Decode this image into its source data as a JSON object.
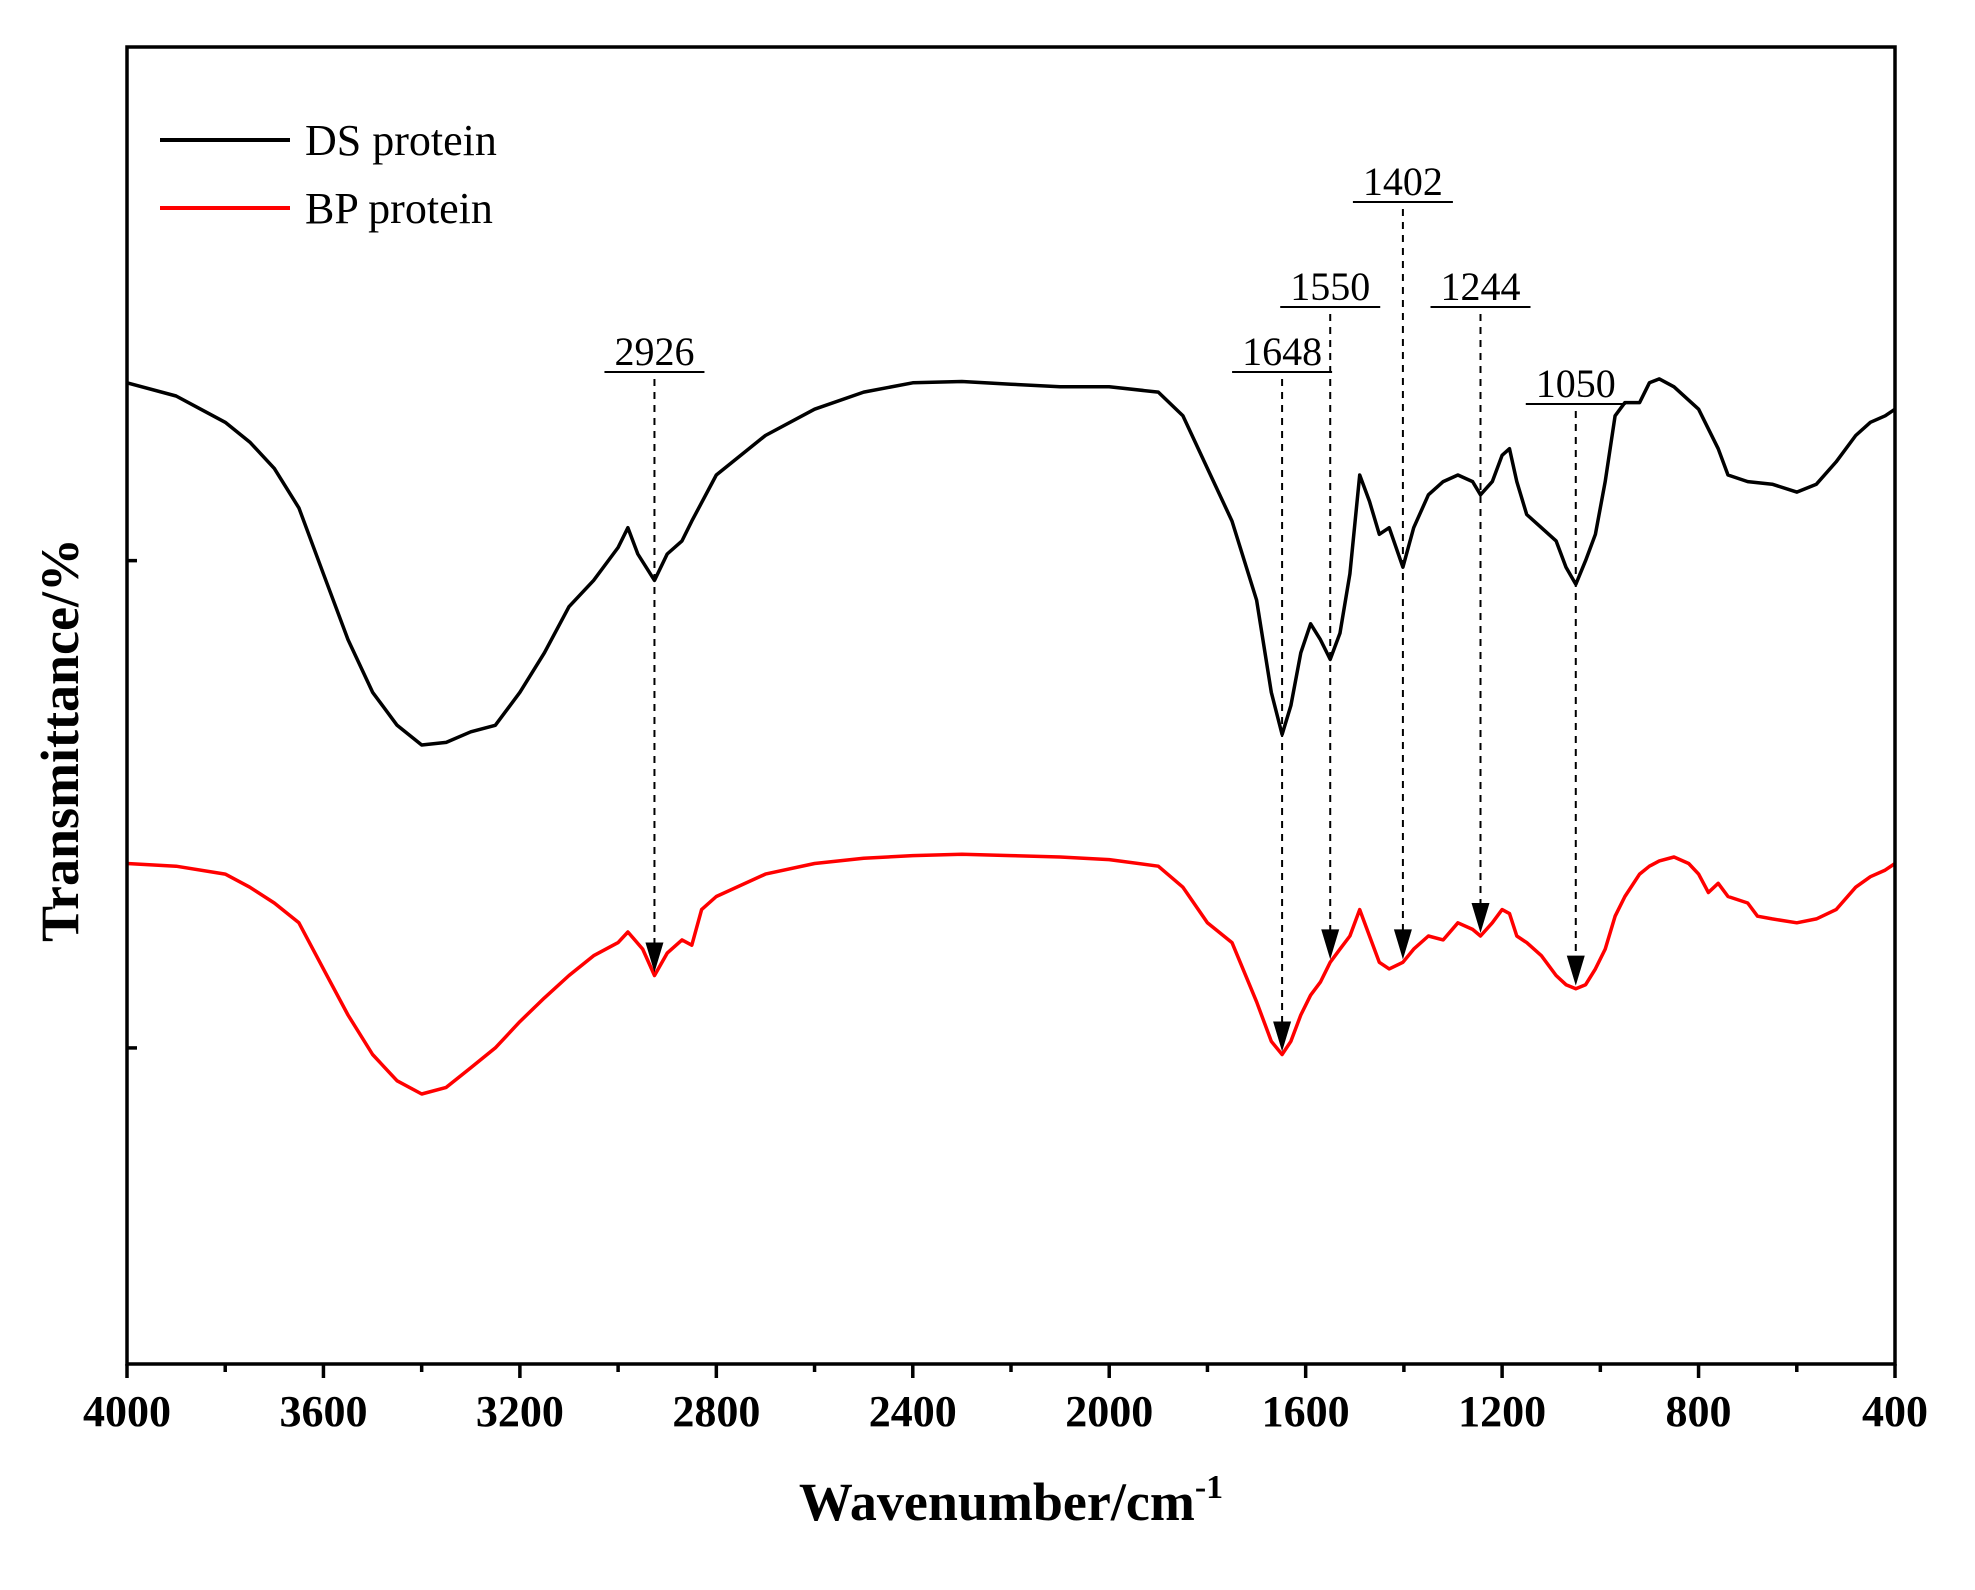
{
  "chart_data": {
    "type": "line",
    "title": "",
    "xlabel": "Wavenumber/cm",
    "xlabel_sup": "-1",
    "ylabel": "Transmittance/%",
    "xlim": [
      4000,
      400
    ],
    "ylim": [
      0,
      10
    ],
    "x_reversed": true,
    "x_ticks": [
      4000,
      3600,
      3200,
      2800,
      2400,
      2000,
      1600,
      1200,
      800,
      400
    ],
    "x_tick_labels": [
      "4000",
      "3600",
      "3200",
      "2800",
      "2400",
      "2000",
      "1600",
      "1200",
      "800",
      "400"
    ],
    "y_ticks": [
      2.4,
      6.1
    ],
    "grid": false,
    "legend_position": "top-left",
    "series": [
      {
        "name": "DS protein",
        "color": "#000000",
        "points": [
          [
            4000,
            7.45
          ],
          [
            3900,
            7.35
          ],
          [
            3850,
            7.25
          ],
          [
            3800,
            7.15
          ],
          [
            3750,
            7.0
          ],
          [
            3700,
            6.8
          ],
          [
            3650,
            6.5
          ],
          [
            3600,
            6.0
          ],
          [
            3550,
            5.5
          ],
          [
            3500,
            5.1
          ],
          [
            3450,
            4.85
          ],
          [
            3400,
            4.7
          ],
          [
            3350,
            4.72
          ],
          [
            3300,
            4.8
          ],
          [
            3250,
            4.85
          ],
          [
            3200,
            5.1
          ],
          [
            3150,
            5.4
          ],
          [
            3100,
            5.75
          ],
          [
            3050,
            5.95
          ],
          [
            3000,
            6.2
          ],
          [
            2980,
            6.35
          ],
          [
            2960,
            6.15
          ],
          [
            2926,
            5.95
          ],
          [
            2900,
            6.15
          ],
          [
            2870,
            6.25
          ],
          [
            2850,
            6.4
          ],
          [
            2800,
            6.75
          ],
          [
            2700,
            7.05
          ],
          [
            2600,
            7.25
          ],
          [
            2500,
            7.38
          ],
          [
            2400,
            7.45
          ],
          [
            2300,
            7.46
          ],
          [
            2200,
            7.44
          ],
          [
            2100,
            7.42
          ],
          [
            2000,
            7.42
          ],
          [
            1900,
            7.38
          ],
          [
            1850,
            7.2
          ],
          [
            1800,
            6.8
          ],
          [
            1750,
            6.4
          ],
          [
            1700,
            5.8
          ],
          [
            1670,
            5.1
          ],
          [
            1648,
            4.78
          ],
          [
            1630,
            5.0
          ],
          [
            1610,
            5.4
          ],
          [
            1590,
            5.62
          ],
          [
            1570,
            5.5
          ],
          [
            1550,
            5.35
          ],
          [
            1530,
            5.55
          ],
          [
            1510,
            6.0
          ],
          [
            1490,
            6.75
          ],
          [
            1470,
            6.55
          ],
          [
            1450,
            6.3
          ],
          [
            1430,
            6.35
          ],
          [
            1402,
            6.05
          ],
          [
            1380,
            6.35
          ],
          [
            1350,
            6.6
          ],
          [
            1320,
            6.7
          ],
          [
            1290,
            6.75
          ],
          [
            1260,
            6.7
          ],
          [
            1244,
            6.6
          ],
          [
            1220,
            6.7
          ],
          [
            1200,
            6.9
          ],
          [
            1185,
            6.95
          ],
          [
            1170,
            6.7
          ],
          [
            1150,
            6.45
          ],
          [
            1120,
            6.35
          ],
          [
            1090,
            6.25
          ],
          [
            1070,
            6.05
          ],
          [
            1050,
            5.92
          ],
          [
            1030,
            6.1
          ],
          [
            1010,
            6.3
          ],
          [
            990,
            6.7
          ],
          [
            970,
            7.2
          ],
          [
            950,
            7.3
          ],
          [
            920,
            7.3
          ],
          [
            900,
            7.45
          ],
          [
            880,
            7.48
          ],
          [
            850,
            7.42
          ],
          [
            800,
            7.25
          ],
          [
            760,
            6.95
          ],
          [
            740,
            6.75
          ],
          [
            700,
            6.7
          ],
          [
            650,
            6.68
          ],
          [
            600,
            6.62
          ],
          [
            560,
            6.68
          ],
          [
            520,
            6.85
          ],
          [
            480,
            7.05
          ],
          [
            450,
            7.15
          ],
          [
            420,
            7.2
          ],
          [
            400,
            7.25
          ]
        ]
      },
      {
        "name": "BP protein",
        "color": "#ff0000",
        "points": [
          [
            4000,
            3.8
          ],
          [
            3900,
            3.78
          ],
          [
            3800,
            3.72
          ],
          [
            3750,
            3.62
          ],
          [
            3700,
            3.5
          ],
          [
            3650,
            3.35
          ],
          [
            3600,
            3.0
          ],
          [
            3550,
            2.65
          ],
          [
            3500,
            2.35
          ],
          [
            3450,
            2.15
          ],
          [
            3400,
            2.05
          ],
          [
            3350,
            2.1
          ],
          [
            3300,
            2.25
          ],
          [
            3250,
            2.4
          ],
          [
            3200,
            2.6
          ],
          [
            3150,
            2.78
          ],
          [
            3100,
            2.95
          ],
          [
            3050,
            3.1
          ],
          [
            3000,
            3.2
          ],
          [
            2980,
            3.28
          ],
          [
            2950,
            3.15
          ],
          [
            2926,
            2.95
          ],
          [
            2900,
            3.12
          ],
          [
            2870,
            3.22
          ],
          [
            2850,
            3.18
          ],
          [
            2830,
            3.45
          ],
          [
            2800,
            3.55
          ],
          [
            2700,
            3.72
          ],
          [
            2600,
            3.8
          ],
          [
            2500,
            3.84
          ],
          [
            2400,
            3.86
          ],
          [
            2300,
            3.87
          ],
          [
            2200,
            3.86
          ],
          [
            2100,
            3.85
          ],
          [
            2000,
            3.83
          ],
          [
            1900,
            3.78
          ],
          [
            1850,
            3.62
          ],
          [
            1800,
            3.35
          ],
          [
            1750,
            3.2
          ],
          [
            1700,
            2.75
          ],
          [
            1670,
            2.45
          ],
          [
            1648,
            2.35
          ],
          [
            1630,
            2.45
          ],
          [
            1610,
            2.65
          ],
          [
            1590,
            2.8
          ],
          [
            1570,
            2.9
          ],
          [
            1550,
            3.05
          ],
          [
            1530,
            3.15
          ],
          [
            1510,
            3.25
          ],
          [
            1490,
            3.45
          ],
          [
            1470,
            3.25
          ],
          [
            1450,
            3.05
          ],
          [
            1430,
            3.0
          ],
          [
            1402,
            3.05
          ],
          [
            1380,
            3.15
          ],
          [
            1350,
            3.25
          ],
          [
            1320,
            3.22
          ],
          [
            1290,
            3.35
          ],
          [
            1260,
            3.3
          ],
          [
            1244,
            3.25
          ],
          [
            1220,
            3.35
          ],
          [
            1200,
            3.45
          ],
          [
            1185,
            3.42
          ],
          [
            1170,
            3.25
          ],
          [
            1150,
            3.2
          ],
          [
            1120,
            3.1
          ],
          [
            1090,
            2.95
          ],
          [
            1070,
            2.88
          ],
          [
            1050,
            2.85
          ],
          [
            1030,
            2.88
          ],
          [
            1010,
            3.0
          ],
          [
            990,
            3.15
          ],
          [
            970,
            3.4
          ],
          [
            950,
            3.55
          ],
          [
            920,
            3.72
          ],
          [
            900,
            3.78
          ],
          [
            880,
            3.82
          ],
          [
            850,
            3.85
          ],
          [
            820,
            3.8
          ],
          [
            800,
            3.72
          ],
          [
            780,
            3.58
          ],
          [
            760,
            3.65
          ],
          [
            740,
            3.55
          ],
          [
            700,
            3.5
          ],
          [
            680,
            3.4
          ],
          [
            650,
            3.38
          ],
          [
            600,
            3.35
          ],
          [
            560,
            3.38
          ],
          [
            520,
            3.45
          ],
          [
            480,
            3.62
          ],
          [
            450,
            3.7
          ],
          [
            420,
            3.75
          ],
          [
            400,
            3.8
          ]
        ]
      }
    ],
    "annotations": [
      {
        "label": "2926",
        "x": 2926,
        "label_level": 2,
        "arrow_to_series": "BP protein"
      },
      {
        "label": "1648",
        "x": 1648,
        "label_level": 2,
        "arrow_to_series": "BP protein"
      },
      {
        "label": "1550",
        "x": 1550,
        "label_level": 1,
        "arrow_to_series": "BP protein"
      },
      {
        "label": "1402",
        "x": 1402,
        "label_level": 0,
        "arrow_to_series": "BP protein"
      },
      {
        "label": "1244",
        "x": 1244,
        "label_level": 1,
        "arrow_to_series": "BP protein"
      },
      {
        "label": "1050",
        "x": 1050,
        "label_level": 3,
        "arrow_to_series": "BP protein"
      }
    ]
  }
}
